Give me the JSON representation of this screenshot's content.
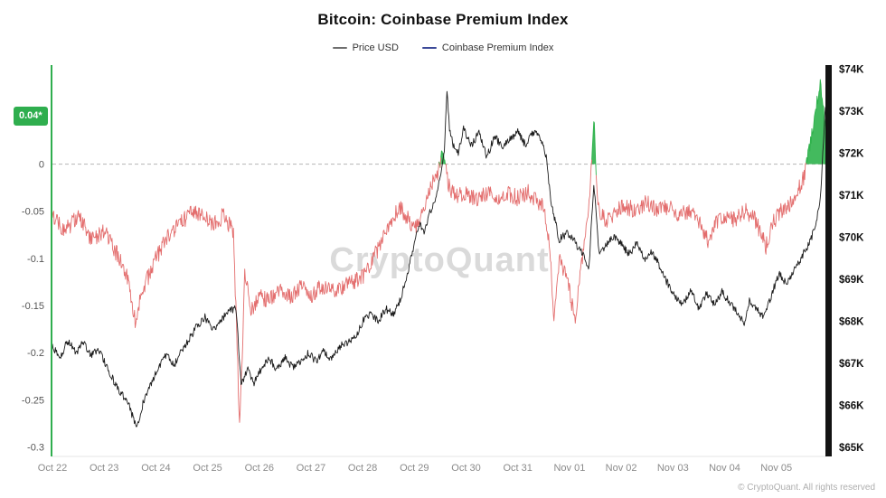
{
  "watermark": "CryptoQuant",
  "legend": {
    "items": [
      {
        "label": "Price USD",
        "color": "#6f6f6f"
      },
      {
        "label": "Coinbase Premium Index",
        "color": "#3c4a99"
      }
    ]
  },
  "badge": {
    "label": "0.04*",
    "bg": "#2fae4e"
  },
  "footer": {
    "copyright": "© CryptoQuant. All rights reserved"
  },
  "colors": {
    "premium_negative": "#e36d6d",
    "premium_positive": "#2fb24c",
    "price": "#1c1c1c",
    "badge_bg": "#2fae4e",
    "axis_left": "#2fae4e",
    "axis_right_bar": "#131313",
    "zero_line": "#b5b5b5",
    "watermark": "#dadada",
    "tick_text": "#555555",
    "x_tick_text": "#8a8a8a",
    "right_tick_text": "#111111"
  },
  "chart_data": {
    "type": "line",
    "title": "Bitcoin: Coinbase Premium Index",
    "x_unit": "days since Oct 22",
    "x_range": [
      0,
      14.95
    ],
    "x_tick_days": [
      0,
      1,
      2,
      3,
      4,
      5,
      6,
      7,
      8,
      9,
      10,
      11,
      12,
      13,
      14
    ],
    "x_tick_labels": [
      "Oct 22",
      "Oct 23",
      "Oct 24",
      "Oct 25",
      "Oct 26",
      "Oct 27",
      "Oct 28",
      "Oct 29",
      "Oct 30",
      "Oct 31",
      "Nov 01",
      "Nov 02",
      "Nov 03",
      "Nov 04",
      "Nov 05"
    ],
    "left_axis": {
      "label": "Coinbase Premium Index",
      "range": [
        -0.31,
        0.105
      ],
      "ticks": [
        0,
        -0.05,
        -0.1,
        -0.15,
        -0.2,
        -0.25,
        -0.3
      ],
      "tick_labels": [
        "0",
        "-0.05",
        "-0.1",
        "-0.15",
        "-0.2",
        "-0.25",
        "-0.3"
      ],
      "current_value": 0.04,
      "current_value_label": "0.04*"
    },
    "right_axis": {
      "label": "Price USD",
      "range": [
        64.79,
        74.1
      ],
      "ticks": [
        74,
        73,
        72,
        71,
        70,
        69,
        68,
        67,
        66,
        65
      ],
      "tick_labels": [
        "$74K",
        "$73K",
        "$72K",
        "$71K",
        "$70K",
        "$69K",
        "$68K",
        "$67K",
        "$66K",
        "$65K"
      ]
    },
    "zero_line": true,
    "noise": {
      "premium": 0.009,
      "price": 0.09
    },
    "series": [
      {
        "name": "Price USD",
        "axis": "right",
        "unit": "thousand USD",
        "color": "#1c1c1c",
        "points": [
          [
            0,
            67.4
          ],
          [
            0.15,
            67.15
          ],
          [
            0.3,
            67.55
          ],
          [
            0.45,
            67.25
          ],
          [
            0.6,
            67.5
          ],
          [
            0.75,
            67.2
          ],
          [
            0.9,
            67.35
          ],
          [
            1.05,
            66.9
          ],
          [
            1.2,
            66.55
          ],
          [
            1.35,
            66.25
          ],
          [
            1.5,
            65.95
          ],
          [
            1.62,
            65.45
          ],
          [
            1.75,
            66.05
          ],
          [
            1.9,
            66.5
          ],
          [
            2.05,
            66.9
          ],
          [
            2.2,
            67.2
          ],
          [
            2.35,
            66.95
          ],
          [
            2.5,
            67.3
          ],
          [
            2.65,
            67.6
          ],
          [
            2.8,
            67.9
          ],
          [
            2.95,
            68.1
          ],
          [
            3.1,
            67.8
          ],
          [
            3.25,
            68.0
          ],
          [
            3.4,
            68.25
          ],
          [
            3.55,
            68.3
          ],
          [
            3.65,
            66.5
          ],
          [
            3.78,
            66.85
          ],
          [
            3.9,
            66.55
          ],
          [
            4.05,
            66.9
          ],
          [
            4.2,
            67.1
          ],
          [
            4.35,
            66.85
          ],
          [
            4.5,
            67.15
          ],
          [
            4.65,
            66.9
          ],
          [
            4.8,
            67.05
          ],
          [
            4.95,
            67.25
          ],
          [
            5.1,
            67.05
          ],
          [
            5.25,
            67.3
          ],
          [
            5.4,
            67.1
          ],
          [
            5.55,
            67.4
          ],
          [
            5.7,
            67.5
          ],
          [
            5.85,
            67.6
          ],
          [
            6.0,
            68.0
          ],
          [
            6.15,
            68.2
          ],
          [
            6.3,
            68.0
          ],
          [
            6.45,
            68.3
          ],
          [
            6.6,
            68.15
          ],
          [
            6.75,
            68.6
          ],
          [
            6.9,
            69.3
          ],
          [
            7.0,
            69.9
          ],
          [
            7.1,
            70.3
          ],
          [
            7.2,
            70.1
          ],
          [
            7.3,
            70.6
          ],
          [
            7.4,
            70.9
          ],
          [
            7.5,
            71.4
          ],
          [
            7.58,
            72.0
          ],
          [
            7.63,
            73.45
          ],
          [
            7.68,
            72.6
          ],
          [
            7.75,
            72.2
          ],
          [
            7.85,
            72.0
          ],
          [
            7.95,
            72.6
          ],
          [
            8.1,
            72.2
          ],
          [
            8.25,
            72.5
          ],
          [
            8.4,
            71.9
          ],
          [
            8.55,
            72.4
          ],
          [
            8.7,
            72.15
          ],
          [
            8.85,
            72.35
          ],
          [
            9.0,
            72.5
          ],
          [
            9.15,
            72.2
          ],
          [
            9.3,
            72.5
          ],
          [
            9.45,
            72.35
          ],
          [
            9.55,
            71.9
          ],
          [
            9.65,
            70.8
          ],
          [
            9.8,
            69.95
          ],
          [
            9.95,
            70.1
          ],
          [
            10.1,
            69.9
          ],
          [
            10.25,
            69.6
          ],
          [
            10.38,
            69.3
          ],
          [
            10.47,
            71.3
          ],
          [
            10.57,
            69.6
          ],
          [
            10.7,
            69.8
          ],
          [
            10.85,
            70.0
          ],
          [
            11.0,
            69.85
          ],
          [
            11.15,
            69.6
          ],
          [
            11.3,
            69.85
          ],
          [
            11.45,
            69.5
          ],
          [
            11.6,
            69.65
          ],
          [
            11.75,
            69.3
          ],
          [
            11.9,
            68.9
          ],
          [
            12.05,
            68.6
          ],
          [
            12.2,
            68.4
          ],
          [
            12.35,
            68.75
          ],
          [
            12.5,
            68.3
          ],
          [
            12.65,
            68.65
          ],
          [
            12.8,
            68.4
          ],
          [
            12.95,
            68.7
          ],
          [
            13.1,
            68.45
          ],
          [
            13.25,
            68.2
          ],
          [
            13.38,
            67.95
          ],
          [
            13.48,
            68.5
          ],
          [
            13.6,
            68.35
          ],
          [
            13.75,
            68.1
          ],
          [
            13.9,
            68.6
          ],
          [
            14.05,
            69.15
          ],
          [
            14.2,
            68.9
          ],
          [
            14.35,
            69.25
          ],
          [
            14.5,
            69.55
          ],
          [
            14.65,
            69.9
          ],
          [
            14.75,
            70.25
          ],
          [
            14.85,
            70.9
          ],
          [
            14.95,
            73.1
          ]
        ]
      },
      {
        "name": "Coinbase Premium Index",
        "axis": "left",
        "color_negative": "#e36d6d",
        "color_positive": "#2fb24c",
        "legend_color": "#3c4a99",
        "points": [
          [
            0,
            -0.055
          ],
          [
            0.25,
            -0.07
          ],
          [
            0.5,
            -0.055
          ],
          [
            0.75,
            -0.08
          ],
          [
            1.0,
            -0.07
          ],
          [
            1.2,
            -0.09
          ],
          [
            1.45,
            -0.12
          ],
          [
            1.6,
            -0.165
          ],
          [
            1.75,
            -0.135
          ],
          [
            1.95,
            -0.105
          ],
          [
            2.2,
            -0.08
          ],
          [
            2.45,
            -0.065
          ],
          [
            2.7,
            -0.05
          ],
          [
            2.9,
            -0.055
          ],
          [
            3.1,
            -0.065
          ],
          [
            3.3,
            -0.055
          ],
          [
            3.5,
            -0.07
          ],
          [
            3.62,
            -0.28
          ],
          [
            3.72,
            -0.12
          ],
          [
            3.85,
            -0.155
          ],
          [
            4.0,
            -0.14
          ],
          [
            4.2,
            -0.145
          ],
          [
            4.4,
            -0.13
          ],
          [
            4.6,
            -0.14
          ],
          [
            4.8,
            -0.13
          ],
          [
            5.0,
            -0.14
          ],
          [
            5.2,
            -0.13
          ],
          [
            5.4,
            -0.135
          ],
          [
            5.6,
            -0.13
          ],
          [
            5.8,
            -0.125
          ],
          [
            6.0,
            -0.12
          ],
          [
            6.2,
            -0.1
          ],
          [
            6.4,
            -0.08
          ],
          [
            6.55,
            -0.06
          ],
          [
            6.7,
            -0.045
          ],
          [
            6.85,
            -0.055
          ],
          [
            7.0,
            -0.07
          ],
          [
            7.15,
            -0.05
          ],
          [
            7.3,
            -0.025
          ],
          [
            7.45,
            -0.008
          ],
          [
            7.55,
            0.014
          ],
          [
            7.65,
            -0.022
          ],
          [
            7.8,
            -0.035
          ],
          [
            8.0,
            -0.03
          ],
          [
            8.2,
            -0.038
          ],
          [
            8.4,
            -0.03
          ],
          [
            8.6,
            -0.038
          ],
          [
            8.8,
            -0.03
          ],
          [
            9.0,
            -0.036
          ],
          [
            9.2,
            -0.03
          ],
          [
            9.35,
            -0.038
          ],
          [
            9.5,
            -0.045
          ],
          [
            9.62,
            -0.09
          ],
          [
            9.7,
            -0.165
          ],
          [
            9.8,
            -0.1
          ],
          [
            9.95,
            -0.12
          ],
          [
            10.1,
            -0.165
          ],
          [
            10.25,
            -0.1
          ],
          [
            10.38,
            -0.04
          ],
          [
            10.47,
            0.05
          ],
          [
            10.55,
            -0.045
          ],
          [
            10.7,
            -0.06
          ],
          [
            10.9,
            -0.05
          ],
          [
            11.1,
            -0.045
          ],
          [
            11.3,
            -0.05
          ],
          [
            11.5,
            -0.04
          ],
          [
            11.7,
            -0.05
          ],
          [
            11.9,
            -0.045
          ],
          [
            12.1,
            -0.055
          ],
          [
            12.3,
            -0.05
          ],
          [
            12.5,
            -0.06
          ],
          [
            12.7,
            -0.085
          ],
          [
            12.85,
            -0.06
          ],
          [
            13.0,
            -0.055
          ],
          [
            13.2,
            -0.06
          ],
          [
            13.4,
            -0.05
          ],
          [
            13.6,
            -0.06
          ],
          [
            13.8,
            -0.088
          ],
          [
            13.95,
            -0.06
          ],
          [
            14.1,
            -0.05
          ],
          [
            14.25,
            -0.045
          ],
          [
            14.4,
            -0.03
          ],
          [
            14.55,
            -0.012
          ],
          [
            14.65,
            0.02
          ],
          [
            14.75,
            0.05
          ],
          [
            14.85,
            0.085
          ],
          [
            14.95,
            0.04
          ]
        ]
      }
    ]
  }
}
